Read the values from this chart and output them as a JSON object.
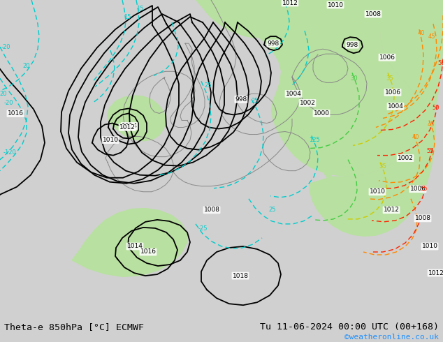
{
  "title_left": "Theta-e 850hPa [°C] ECMWF",
  "title_right": "Tu 11-06-2024 00:00 UTC (00+168)",
  "credit": "©weatheronline.co.uk",
  "bg_color": "#d0d0d0",
  "map_bg": "#d0d0d0",
  "green_color": "#b8e0a0",
  "fig_width": 6.34,
  "fig_height": 4.9,
  "dpi": 100,
  "bottom_bar_color": "#e8e8e8",
  "title_fontsize": 9.5,
  "credit_color": "#1e90ff",
  "credit_fontsize": 8,
  "coast_color": "#888888",
  "black_lw": 1.3,
  "cyan_color": "#00cccc",
  "green_theta_color": "#44cc44",
  "yellow_theta_color": "#cccc00",
  "orange_theta_color": "#ff8800",
  "red_theta_color": "#ff2200"
}
